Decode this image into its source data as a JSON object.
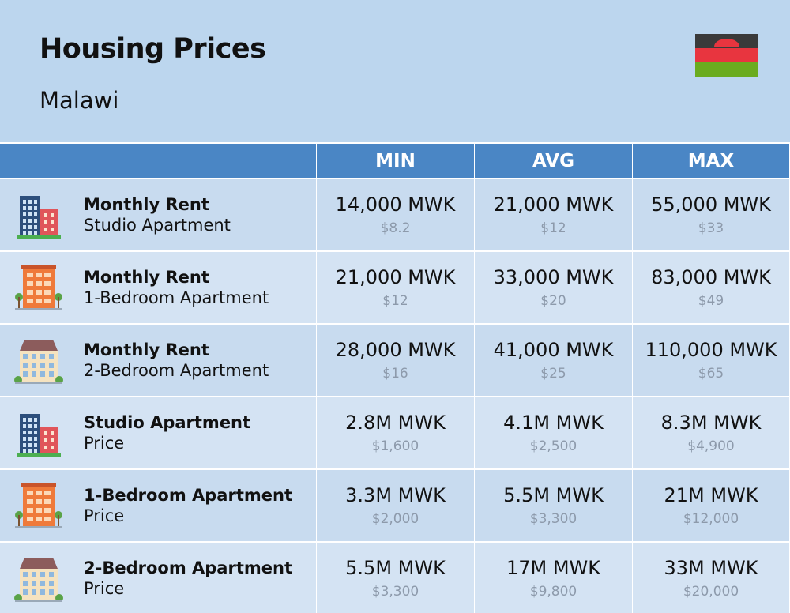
{
  "header": {
    "title": "Housing Prices",
    "subtitle": "Malawi"
  },
  "table": {
    "columns": [
      "MIN",
      "AVG",
      "MAX"
    ],
    "rows": [
      {
        "title": "Monthly Rent",
        "subtitle": "Studio Apartment",
        "cells": [
          {
            "local": "14,000 MWK",
            "usd": "$8.2"
          },
          {
            "local": "21,000 MWK",
            "usd": "$12"
          },
          {
            "local": "55,000 MWK",
            "usd": "$33"
          }
        ]
      },
      {
        "title": "Monthly Rent",
        "subtitle": "1-Bedroom Apartment",
        "cells": [
          {
            "local": "21,000 MWK",
            "usd": "$12"
          },
          {
            "local": "33,000 MWK",
            "usd": "$20"
          },
          {
            "local": "83,000 MWK",
            "usd": "$49"
          }
        ]
      },
      {
        "title": "Monthly Rent",
        "subtitle": "2-Bedroom Apartment",
        "cells": [
          {
            "local": "28,000 MWK",
            "usd": "$16"
          },
          {
            "local": "41,000 MWK",
            "usd": "$25"
          },
          {
            "local": "110,000 MWK",
            "usd": "$65"
          }
        ]
      },
      {
        "title": "Studio Apartment",
        "subtitle": "Price",
        "cells": [
          {
            "local": "2.8M MWK",
            "usd": "$1,600"
          },
          {
            "local": "4.1M MWK",
            "usd": "$2,500"
          },
          {
            "local": "8.3M MWK",
            "usd": "$4,900"
          }
        ]
      },
      {
        "title": "1-Bedroom Apartment",
        "subtitle": "Price",
        "cells": [
          {
            "local": "3.3M MWK",
            "usd": "$2,000"
          },
          {
            "local": "5.5M MWK",
            "usd": "$3,300"
          },
          {
            "local": "21M MWK",
            "usd": "$12,000"
          }
        ]
      },
      {
        "title": "2-Bedroom Apartment",
        "subtitle": "Price",
        "cells": [
          {
            "local": "5.5M MWK",
            "usd": "$3,300"
          },
          {
            "local": "17M MWK",
            "usd": "$9,800"
          },
          {
            "local": "33M MWK",
            "usd": "$20,000"
          }
        ]
      }
    ]
  }
}
